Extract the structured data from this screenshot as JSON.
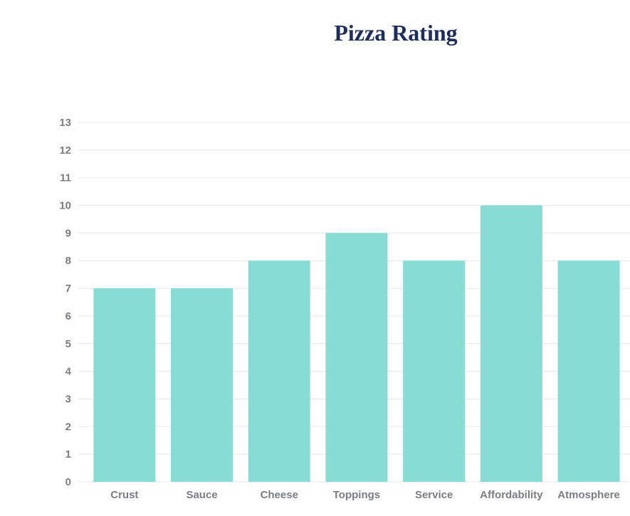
{
  "chart_data": {
    "type": "bar",
    "title": "Pizza Rating",
    "xlabel": "",
    "ylabel": "",
    "categories": [
      "Crust",
      "Sauce",
      "Cheese",
      "Toppings",
      "Service",
      "Affordability",
      "Atmosphere"
    ],
    "values": [
      7,
      7,
      8,
      9,
      8,
      10,
      8
    ],
    "ylim": [
      0,
      13
    ],
    "yticks": [
      "0",
      "1",
      "2",
      "3",
      "4",
      "5",
      "6",
      "7",
      "8",
      "9",
      "10",
      "11",
      "12",
      "13"
    ],
    "grid": true,
    "legend": "none",
    "bar_color": "#87ddd4",
    "title_color": "#1d2d5c"
  }
}
